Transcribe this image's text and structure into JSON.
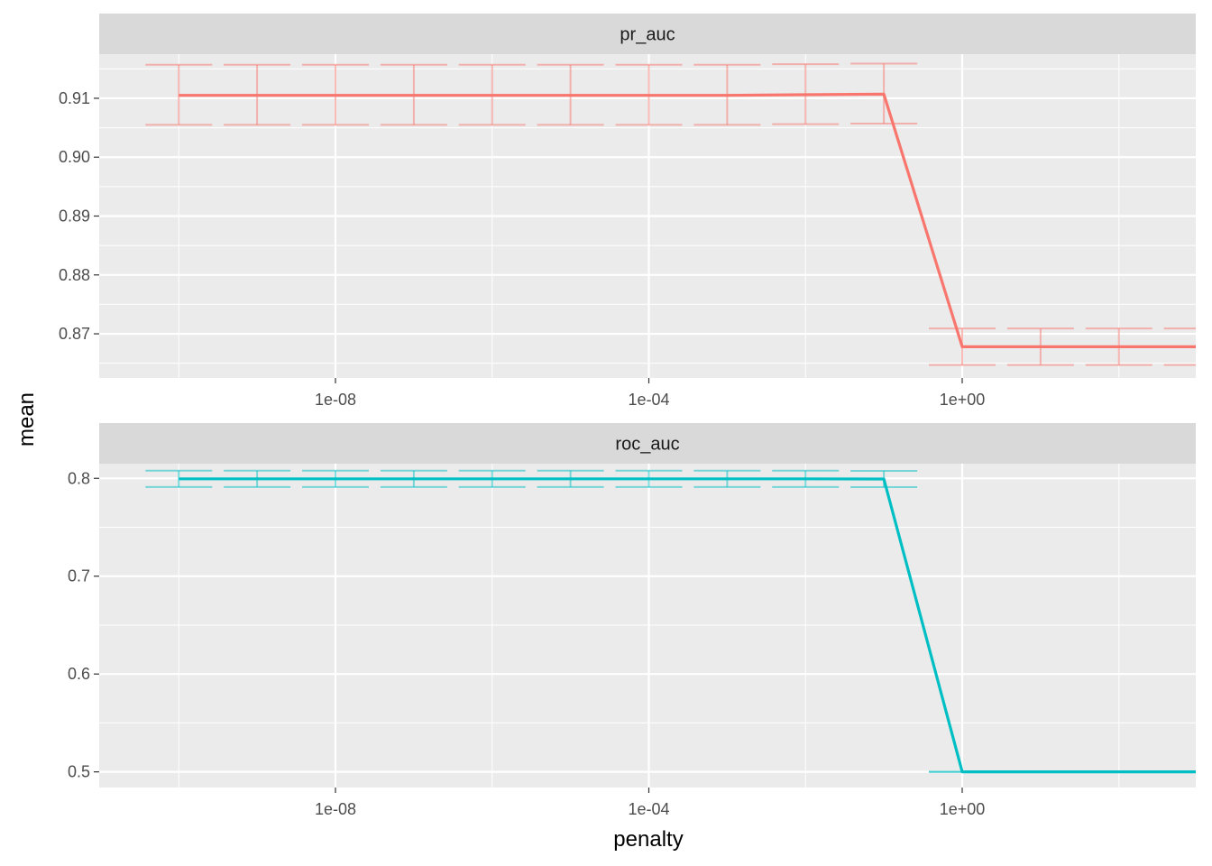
{
  "chart_data": {
    "type": "line",
    "xlabel": "penalty",
    "ylabel": "mean",
    "x_scale": "log10",
    "x_ticks": [
      {
        "value": 1e-08,
        "label": "1e-08"
      },
      {
        "value": 0.0001,
        "label": "1e-04"
      },
      {
        "value": 1,
        "label": "1e+00"
      }
    ],
    "grid": true,
    "legend": "none",
    "panels": [
      {
        "title": "pr_auc",
        "color": "#F8766D",
        "ylim": [
          0.8625,
          0.9175
        ],
        "y_ticks": [
          {
            "value": 0.87,
            "label": "0.87"
          },
          {
            "value": 0.88,
            "label": "0.88"
          },
          {
            "value": 0.89,
            "label": "0.89"
          },
          {
            "value": 0.9,
            "label": "0.90"
          },
          {
            "value": 0.91,
            "label": "0.91"
          }
        ],
        "x": [
          1e-10,
          1e-09,
          1e-08,
          1e-07,
          1e-06,
          1e-05,
          0.0001,
          0.001,
          0.01,
          0.1,
          1,
          10,
          100,
          1000
        ],
        "mean": [
          0.9105,
          0.9105,
          0.9105,
          0.9105,
          0.9105,
          0.9105,
          0.9105,
          0.9105,
          0.9106,
          0.9107,
          0.8678,
          0.8678,
          0.8678,
          0.8678
        ],
        "upper": [
          0.9157,
          0.9157,
          0.9157,
          0.9157,
          0.9157,
          0.9157,
          0.9157,
          0.9157,
          0.9158,
          0.9159,
          0.8709,
          0.8709,
          0.8709,
          0.8709
        ],
        "lower": [
          0.9055,
          0.9055,
          0.9055,
          0.9055,
          0.9055,
          0.9055,
          0.9055,
          0.9055,
          0.9056,
          0.9057,
          0.8647,
          0.8647,
          0.8647,
          0.8647
        ]
      },
      {
        "title": "roc_auc",
        "color": "#00BFC4",
        "ylim": [
          0.484,
          0.815
        ],
        "y_ticks": [
          {
            "value": 0.5,
            "label": "0.5"
          },
          {
            "value": 0.6,
            "label": "0.6"
          },
          {
            "value": 0.7,
            "label": "0.7"
          },
          {
            "value": 0.8,
            "label": "0.8"
          }
        ],
        "x": [
          1e-10,
          1e-09,
          1e-08,
          1e-07,
          1e-06,
          1e-05,
          0.0001,
          0.001,
          0.01,
          0.1,
          1,
          10,
          100,
          1000
        ],
        "mean": [
          0.7995,
          0.7995,
          0.7995,
          0.7995,
          0.7995,
          0.7995,
          0.7995,
          0.7995,
          0.7995,
          0.7993,
          0.5,
          0.5,
          0.5,
          0.5
        ],
        "upper": [
          0.8078,
          0.8078,
          0.8078,
          0.8078,
          0.8078,
          0.8078,
          0.8078,
          0.8078,
          0.8078,
          0.8076,
          0.5,
          0.5,
          0.5,
          0.5
        ],
        "lower": [
          0.7912,
          0.7912,
          0.7912,
          0.7912,
          0.7912,
          0.7912,
          0.7912,
          0.7912,
          0.7912,
          0.791,
          0.5,
          0.5,
          0.5,
          0.5
        ]
      }
    ]
  }
}
